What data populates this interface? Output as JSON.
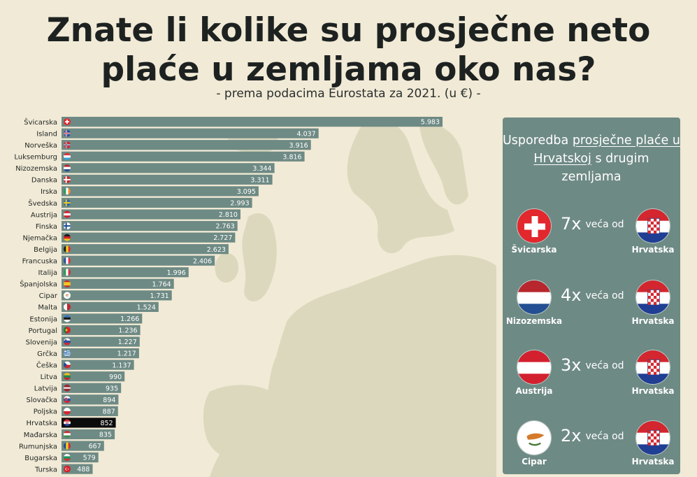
{
  "header": {
    "title_line1": "Znate li kolike su prosječne neto",
    "title_line2": "plaće u zemljama oko nas?",
    "subtitle": "- prema podacima Eurostata za 2021. (u €) -"
  },
  "colors": {
    "background": "#f1ead6",
    "map": "#dcd8bd",
    "bar": "#6e8a84",
    "bar_highlight": "#0b0b0b",
    "panel": "#6e8a84"
  },
  "chart_data": {
    "type": "bar",
    "orientation": "horizontal",
    "highlight": "Hrvatska",
    "categories": [
      "Švicarska",
      "Island",
      "Norveška",
      "Luksemburg",
      "Nizozemska",
      "Danska",
      "Irska",
      "Švedska",
      "Austrija",
      "Finska",
      "Njemačka",
      "Belgija",
      "Francuska",
      "Italija",
      "Španjolska",
      "Cipar",
      "Malta",
      "Estonija",
      "Portugal",
      "Slovenija",
      "Grčka",
      "Češka",
      "Litva",
      "Latvija",
      "Slovačka",
      "Poljska",
      "Hrvatska",
      "Mađarska",
      "Rumunjska",
      "Bugarska",
      "Turska"
    ],
    "values": [
      5983,
      4037,
      3916,
      3816,
      3344,
      3311,
      3095,
      2993,
      2810,
      2763,
      2727,
      2623,
      2406,
      1996,
      1764,
      1731,
      1524,
      1266,
      1236,
      1227,
      1217,
      1137,
      990,
      935,
      894,
      887,
      852,
      835,
      667,
      579,
      488
    ],
    "value_labels": [
      "5.983",
      "4.037",
      "3.916",
      "3.816",
      "3.344",
      "3.311",
      "3.095",
      "2.993",
      "2.810",
      "2.763",
      "2.727",
      "2.623",
      "2.406",
      "1.996",
      "1.764",
      "1.731",
      "1.524",
      "1.266",
      "1.236",
      "1.227",
      "1.217",
      "1.137",
      "990",
      "935",
      "894",
      "887",
      "852",
      "835",
      "667",
      "579",
      "488"
    ],
    "flags": [
      "ch",
      "is",
      "no",
      "lu",
      "nl",
      "dk",
      "ie",
      "se",
      "at",
      "fi",
      "de",
      "be",
      "fr",
      "it",
      "es",
      "cy",
      "mt",
      "ee",
      "pt",
      "si",
      "gr",
      "cz",
      "lt",
      "lv",
      "sk",
      "pl",
      "hr",
      "hu",
      "ro",
      "bg",
      "tr"
    ],
    "xlim": [
      0,
      5983
    ]
  },
  "panel": {
    "title_pre": "Usporedba ",
    "title_u": "prosječne plaće u Hrvatskoj",
    "title_post": " s drugim zemljama",
    "rows": [
      {
        "left_label": "Švicarska",
        "left_flag": "ch",
        "multiplier": "7x",
        "text": "veća od",
        "right_label": "Hrvatska",
        "right_flag": "hr"
      },
      {
        "left_label": "Nizozemska",
        "left_flag": "nl",
        "multiplier": "4x",
        "text": "veća od",
        "right_label": "Hrvatska",
        "right_flag": "hr"
      },
      {
        "left_label": "Austrija",
        "left_flag": "at",
        "multiplier": "3x",
        "text": "veća od",
        "right_label": "Hrvatska",
        "right_flag": "hr"
      },
      {
        "left_label": "Cipar",
        "left_flag": "cy",
        "multiplier": "2x",
        "text": "veća od",
        "right_label": "Hrvatska",
        "right_flag": "hr"
      }
    ]
  }
}
